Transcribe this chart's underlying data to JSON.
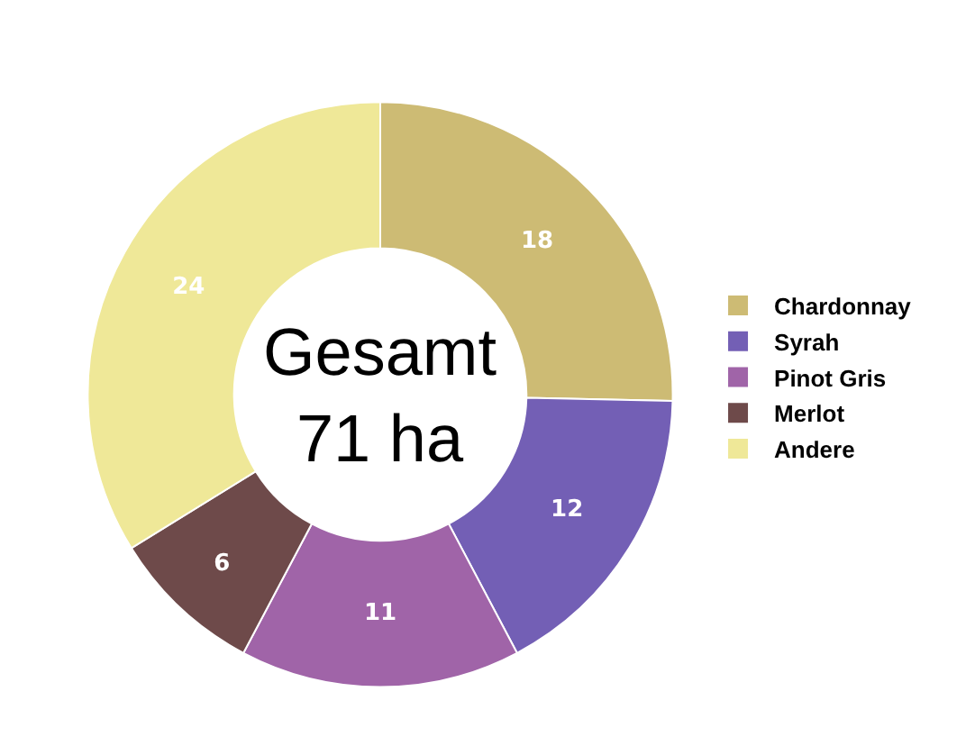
{
  "chart_data": {
    "type": "donut",
    "categories": [
      "Chardonnay",
      "Syrah",
      "Pinot Gris",
      "Merlot",
      "Andere"
    ],
    "values": [
      18,
      12,
      11,
      6,
      24
    ],
    "colors": [
      "#cdbb74",
      "#735fb5",
      "#a064a8",
      "#6e4a4a",
      "#efe898"
    ],
    "data_labels": true,
    "legend": "right",
    "annotations": [
      "Gesamt\n71 ha"
    ]
  }
}
